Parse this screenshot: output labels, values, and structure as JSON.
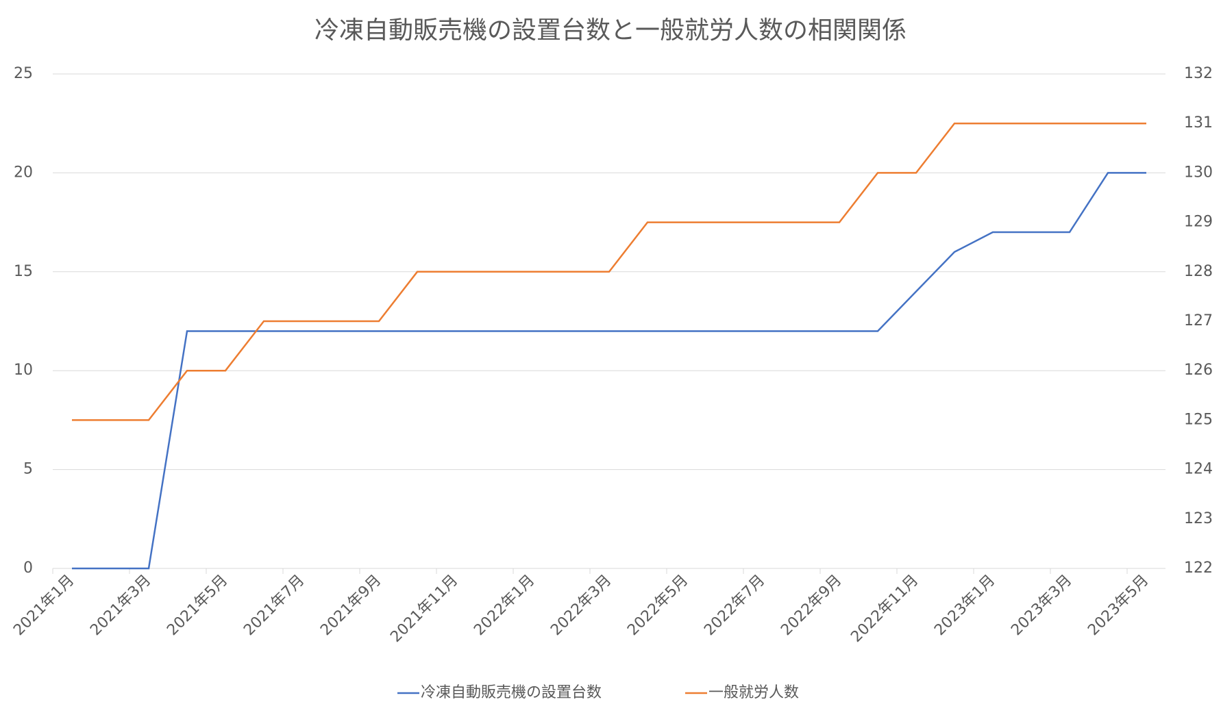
{
  "chart_data": {
    "type": "line",
    "title": "冷凍自動販売機の設置台数と一般就労人数の相関関係",
    "categories": [
      "2021年1月",
      null,
      "2021年3月",
      null,
      "2021年5月",
      null,
      "2021年7月",
      null,
      "2021年9月",
      null,
      "2021年11月",
      null,
      "2022年1月",
      null,
      "2022年3月",
      null,
      "2022年5月",
      null,
      "2022年7月",
      null,
      "2022年9月",
      null,
      "2022年11月",
      null,
      "2023年1月",
      null,
      "2023年3月",
      null,
      "2023年5月"
    ],
    "series": [
      {
        "name": "冷凍自動販売機の設置台数",
        "color": "#4472c4",
        "values": [
          0,
          0,
          0,
          12,
          12,
          12,
          12,
          12,
          12,
          12,
          12,
          12,
          12,
          12,
          12,
          12,
          12,
          12,
          12,
          12,
          12,
          12,
          14,
          16,
          17,
          17,
          17,
          20,
          20
        ]
      },
      {
        "name": "一般就労人数",
        "color": "#ed7d31",
        "axis": "y2",
        "values": [
          125,
          125,
          125,
          126,
          126,
          127,
          127,
          127,
          127,
          128,
          128,
          128,
          128,
          128,
          128,
          129,
          129,
          129,
          129,
          129,
          129,
          130,
          130,
          131,
          131,
          131,
          131,
          131,
          131
        ]
      }
    ],
    "ylim": [
      0,
      25
    ],
    "yticks": [
      0,
      5,
      10,
      15,
      20,
      25
    ],
    "y2lim": [
      122,
      132
    ],
    "y2ticks": [
      122,
      123,
      124,
      125,
      126,
      127,
      128,
      129,
      130,
      131,
      132
    ],
    "grid": true,
    "legend": "bottom"
  }
}
